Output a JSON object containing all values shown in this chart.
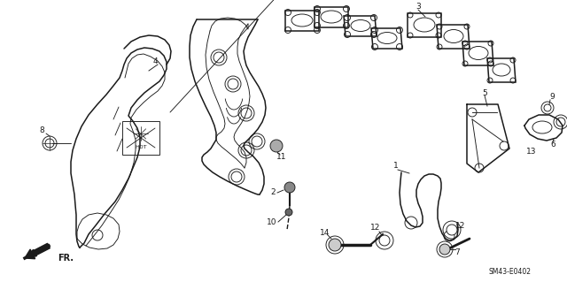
{
  "background_color": "#ffffff",
  "diagram_code": "SM43-E0402",
  "fr_label": "FR.",
  "figsize": [
    6.4,
    3.19
  ],
  "dpi": 100,
  "lw_main": 1.1,
  "lw_thin": 0.65,
  "col": "#1a1a1a",
  "xlim": [
    0,
    640
  ],
  "ylim": [
    0,
    319
  ]
}
